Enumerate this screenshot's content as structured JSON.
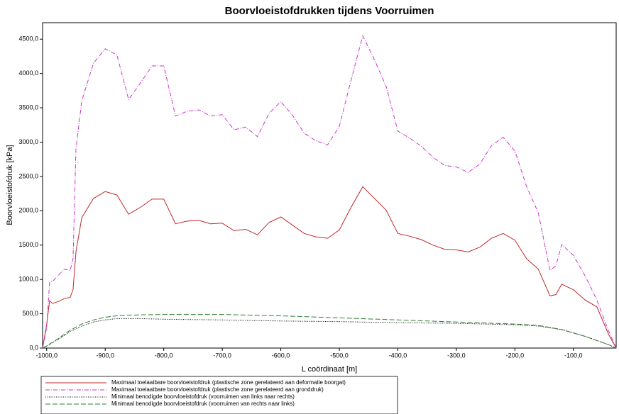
{
  "chart_data": {
    "type": "line",
    "title": "Boorvloeistofdrukken tijdens Voorruimen",
    "x_label": "L coördinaat [m]",
    "y_label": "Boorvloeistofdruk [kPa]",
    "xlim": [
      -1007,
      -27
    ],
    "ylim": [
      0,
      4740
    ],
    "xticks": [
      {
        "value": -1000,
        "label": "-1000,0"
      },
      {
        "value": -900,
        "label": "-900,0"
      },
      {
        "value": -800,
        "label": "-800,0"
      },
      {
        "value": -700,
        "label": "-700,0"
      },
      {
        "value": -600,
        "label": "-600,0"
      },
      {
        "value": -500,
        "label": "-500,0"
      },
      {
        "value": -400,
        "label": "-400,0"
      },
      {
        "value": -300,
        "label": "-300,0"
      },
      {
        "value": -200,
        "label": "-200,0"
      },
      {
        "value": -100,
        "label": "-100,0"
      }
    ],
    "yticks": [
      {
        "value": 0,
        "label": "0,0"
      },
      {
        "value": 500,
        "label": "500,0"
      },
      {
        "value": 1000,
        "label": "1000,0"
      },
      {
        "value": 1500,
        "label": "1500,0"
      },
      {
        "value": 2000,
        "label": "2000,0"
      },
      {
        "value": 2500,
        "label": "2500,0"
      },
      {
        "value": 3000,
        "label": "3000,0"
      },
      {
        "value": 3500,
        "label": "3500,0"
      },
      {
        "value": 4000,
        "label": "4000,0"
      },
      {
        "value": 4500,
        "label": "4500,0"
      }
    ],
    "series": [
      {
        "name": "Maximaal toelaatbare boorvloeistofdruk (plastische zone gerelateerd aan deformatie boorgat)",
        "color": "#c0282d",
        "style": "solid",
        "x": [
          -1007,
          -1000,
          -995,
          -990,
          -980,
          -970,
          -960,
          -955,
          -950,
          -940,
          -920,
          -900,
          -880,
          -860,
          -840,
          -820,
          -800,
          -780,
          -760,
          -740,
          -720,
          -700,
          -680,
          -660,
          -640,
          -620,
          -600,
          -580,
          -560,
          -540,
          -520,
          -500,
          -480,
          -460,
          -440,
          -420,
          -400,
          -380,
          -360,
          -340,
          -320,
          -300,
          -280,
          -260,
          -240,
          -220,
          -200,
          -180,
          -160,
          -140,
          -130,
          -120,
          -100,
          -80,
          -60,
          -40,
          -27
        ],
        "values": [
          0,
          350,
          690,
          650,
          680,
          720,
          740,
          850,
          1400,
          1900,
          2180,
          2280,
          2230,
          1950,
          2050,
          2170,
          2170,
          1810,
          1850,
          1860,
          1810,
          1820,
          1710,
          1730,
          1650,
          1830,
          1910,
          1790,
          1670,
          1620,
          1600,
          1720,
          2050,
          2350,
          2180,
          2010,
          1670,
          1630,
          1580,
          1500,
          1440,
          1430,
          1400,
          1470,
          1600,
          1670,
          1570,
          1300,
          1150,
          760,
          780,
          930,
          850,
          700,
          600,
          200,
          0
        ]
      },
      {
        "name": "Maximaal toelaatbare boorvloeistofdruk (plastische zone gerelateerd aan gronddruk)",
        "color": "#cc33cc",
        "style": "dashdot",
        "x": [
          -1007,
          -1000,
          -995,
          -990,
          -980,
          -970,
          -960,
          -955,
          -950,
          -940,
          -920,
          -900,
          -880,
          -860,
          -840,
          -820,
          -800,
          -780,
          -760,
          -740,
          -720,
          -700,
          -680,
          -660,
          -640,
          -620,
          -600,
          -580,
          -560,
          -540,
          -520,
          -500,
          -480,
          -460,
          -440,
          -420,
          -400,
          -380,
          -360,
          -340,
          -320,
          -300,
          -280,
          -260,
          -240,
          -220,
          -200,
          -180,
          -160,
          -140,
          -130,
          -120,
          -100,
          -80,
          -60,
          -40,
          -27
        ],
        "values": [
          0,
          300,
          960,
          970,
          1060,
          1150,
          1130,
          1300,
          2900,
          3600,
          4150,
          4360,
          4270,
          3620,
          3860,
          4110,
          4110,
          3380,
          3450,
          3470,
          3380,
          3400,
          3180,
          3220,
          3080,
          3420,
          3590,
          3390,
          3130,
          3020,
          2960,
          3230,
          3900,
          4550,
          4200,
          3810,
          3160,
          3060,
          2940,
          2780,
          2660,
          2640,
          2560,
          2680,
          2950,
          3070,
          2870,
          2350,
          1970,
          1130,
          1200,
          1510,
          1350,
          1050,
          700,
          250,
          0
        ]
      },
      {
        "name": "Minimaal benodigde boorvloeistofdruk (voorruimen van links naar rechts)",
        "color": "#000000",
        "style": "dotted",
        "x": [
          -1007,
          -1000,
          -980,
          -960,
          -940,
          -920,
          -900,
          -880,
          -860,
          -840,
          -800,
          -700,
          -600,
          -500,
          -400,
          -300,
          -200,
          -160,
          -120,
          -80,
          -40,
          -27
        ],
        "values": [
          0,
          30,
          130,
          240,
          320,
          380,
          410,
          430,
          430,
          430,
          420,
          410,
          395,
          385,
          370,
          360,
          340,
          320,
          270,
          170,
          50,
          0
        ]
      },
      {
        "name": "Minimaal benodigde boorvloeistofdruk (voorruimen van rechts naar links)",
        "color": "#2e7d32",
        "style": "dashed",
        "x": [
          -1007,
          -1000,
          -980,
          -960,
          -940,
          -920,
          -900,
          -880,
          -860,
          -800,
          -700,
          -600,
          -500,
          -400,
          -300,
          -200,
          -160,
          -120,
          -80,
          -40,
          -27
        ],
        "values": [
          0,
          30,
          140,
          260,
          350,
          410,
          450,
          470,
          480,
          490,
          490,
          470,
          440,
          410,
          380,
          350,
          330,
          270,
          170,
          50,
          0
        ]
      }
    ]
  }
}
